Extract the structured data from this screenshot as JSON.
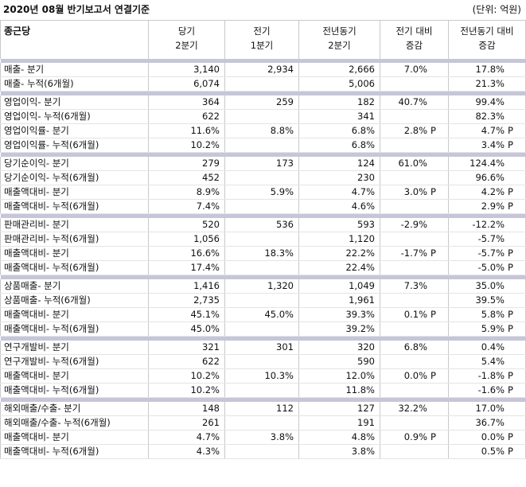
{
  "report": {
    "title": "2020년 08월 반기보고서 연결기준",
    "unit": "(단위: 억원)"
  },
  "table": {
    "corner": "종근당",
    "columns": [
      [
        "당기",
        "2분기"
      ],
      [
        "전기",
        "1분기"
      ],
      [
        "전년동기",
        "2분기"
      ],
      [
        "전기 대비",
        "증감"
      ],
      [
        "전년동기 대비",
        "증감"
      ]
    ],
    "groups": [
      {
        "rows": [
          {
            "label": "매출- 분기",
            "cur": "3,140",
            "prev": "2,934",
            "yoy": "2,666",
            "qoq": "7.0%",
            "qoq_p": "",
            "yoyc": "17.8%",
            "yoyc_p": ""
          },
          {
            "label": "매출- 누적(6개월)",
            "cur": "6,074",
            "prev": "",
            "yoy": "5,006",
            "qoq": "",
            "qoq_p": "",
            "yoyc": "21.3%",
            "yoyc_p": ""
          }
        ]
      },
      {
        "rows": [
          {
            "label": "영업이익- 분기",
            "cur": "364",
            "prev": "259",
            "yoy": "182",
            "qoq": "40.7%",
            "qoq_p": "",
            "yoyc": "99.4%",
            "yoyc_p": ""
          },
          {
            "label": "영업이익- 누적(6개월)",
            "cur": "622",
            "prev": "",
            "yoy": "341",
            "qoq": "",
            "qoq_p": "",
            "yoyc": "82.3%",
            "yoyc_p": ""
          },
          {
            "label": "영업이익률- 분기",
            "cur": "11.6%",
            "prev": "8.8%",
            "yoy": "6.8%",
            "qoq": "2.8%",
            "qoq_p": "P",
            "yoyc": "4.7%",
            "yoyc_p": "P"
          },
          {
            "label": "영업이익률- 누적(6개월)",
            "cur": "10.2%",
            "prev": "",
            "yoy": "6.8%",
            "qoq": "",
            "qoq_p": "",
            "yoyc": "3.4%",
            "yoyc_p": "P"
          }
        ]
      },
      {
        "rows": [
          {
            "label": "당기순이익- 분기",
            "cur": "279",
            "prev": "173",
            "yoy": "124",
            "qoq": "61.0%",
            "qoq_p": "",
            "yoyc": "124.4%",
            "yoyc_p": ""
          },
          {
            "label": "당기순이익- 누적(6개월)",
            "cur": "452",
            "prev": "",
            "yoy": "230",
            "qoq": "",
            "qoq_p": "",
            "yoyc": "96.6%",
            "yoyc_p": ""
          },
          {
            "label": "매출액대비- 분기",
            "cur": "8.9%",
            "prev": "5.9%",
            "yoy": "4.7%",
            "qoq": "3.0%",
            "qoq_p": "P",
            "yoyc": "4.2%",
            "yoyc_p": "P"
          },
          {
            "label": "매출액대비- 누적(6개월)",
            "cur": "7.4%",
            "prev": "",
            "yoy": "4.6%",
            "qoq": "",
            "qoq_p": "",
            "yoyc": "2.9%",
            "yoyc_p": "P"
          }
        ]
      },
      {
        "rows": [
          {
            "label": "판매관리비- 분기",
            "cur": "520",
            "prev": "536",
            "yoy": "593",
            "qoq": "-2.9%",
            "qoq_p": "",
            "yoyc": "-12.2%",
            "yoyc_p": ""
          },
          {
            "label": "판매관리비- 누적(6개월)",
            "cur": "1,056",
            "prev": "",
            "yoy": "1,120",
            "qoq": "",
            "qoq_p": "",
            "yoyc": "-5.7%",
            "yoyc_p": ""
          },
          {
            "label": "매출액대비- 분기",
            "cur": "16.6%",
            "prev": "18.3%",
            "yoy": "22.2%",
            "qoq": "-1.7%",
            "qoq_p": "P",
            "yoyc": "-5.7%",
            "yoyc_p": "P"
          },
          {
            "label": "매출액대비- 누적(6개월)",
            "cur": "17.4%",
            "prev": "",
            "yoy": "22.4%",
            "qoq": "",
            "qoq_p": "",
            "yoyc": "-5.0%",
            "yoyc_p": "P"
          }
        ]
      },
      {
        "rows": [
          {
            "label": "상품매출- 분기",
            "cur": "1,416",
            "prev": "1,320",
            "yoy": "1,049",
            "qoq": "7.3%",
            "qoq_p": "",
            "yoyc": "35.0%",
            "yoyc_p": ""
          },
          {
            "label": "상품매출- 누적(6개월)",
            "cur": "2,735",
            "prev": "",
            "yoy": "1,961",
            "qoq": "",
            "qoq_p": "",
            "yoyc": "39.5%",
            "yoyc_p": ""
          },
          {
            "label": "매출액대비- 분기",
            "cur": "45.1%",
            "prev": "45.0%",
            "yoy": "39.3%",
            "qoq": "0.1%",
            "qoq_p": "P",
            "yoyc": "5.8%",
            "yoyc_p": "P"
          },
          {
            "label": "매출액대비- 누적(6개월)",
            "cur": "45.0%",
            "prev": "",
            "yoy": "39.2%",
            "qoq": "",
            "qoq_p": "",
            "yoyc": "5.9%",
            "yoyc_p": "P"
          }
        ]
      },
      {
        "rows": [
          {
            "label": "연구개발비- 분기",
            "cur": "321",
            "prev": "301",
            "yoy": "320",
            "qoq": "6.8%",
            "qoq_p": "",
            "yoyc": "0.4%",
            "yoyc_p": ""
          },
          {
            "label": "연구개발비- 누적(6개월)",
            "cur": "622",
            "prev": "",
            "yoy": "590",
            "qoq": "",
            "qoq_p": "",
            "yoyc": "5.4%",
            "yoyc_p": ""
          },
          {
            "label": "매출액대비- 분기",
            "cur": "10.2%",
            "prev": "10.3%",
            "yoy": "12.0%",
            "qoq": "0.0%",
            "qoq_p": "P",
            "yoyc": "-1.8%",
            "yoyc_p": "P"
          },
          {
            "label": "매출액대비- 누적(6개월)",
            "cur": "10.2%",
            "prev": "",
            "yoy": "11.8%",
            "qoq": "",
            "qoq_p": "",
            "yoyc": "-1.6%",
            "yoyc_p": "P"
          }
        ]
      },
      {
        "rows": [
          {
            "label": "해외매출/수출- 분기",
            "cur": "148",
            "prev": "112",
            "yoy": "127",
            "qoq": "32.2%",
            "qoq_p": "",
            "yoyc": "17.0%",
            "yoyc_p": ""
          },
          {
            "label": "해외매출/수출- 누적(6개월)",
            "cur": "261",
            "prev": "",
            "yoy": "191",
            "qoq": "",
            "qoq_p": "",
            "yoyc": "36.7%",
            "yoyc_p": ""
          },
          {
            "label": "매출액대비- 분기",
            "cur": "4.7%",
            "prev": "3.8%",
            "yoy": "4.8%",
            "qoq": "0.9%",
            "qoq_p": "P",
            "yoyc": "0.0%",
            "yoyc_p": "P"
          },
          {
            "label": "매출액대비- 누적(6개월)",
            "cur": "4.3%",
            "prev": "",
            "yoy": "3.8%",
            "qoq": "",
            "qoq_p": "",
            "yoyc": "0.5%",
            "yoyc_p": "P"
          }
        ]
      }
    ]
  }
}
